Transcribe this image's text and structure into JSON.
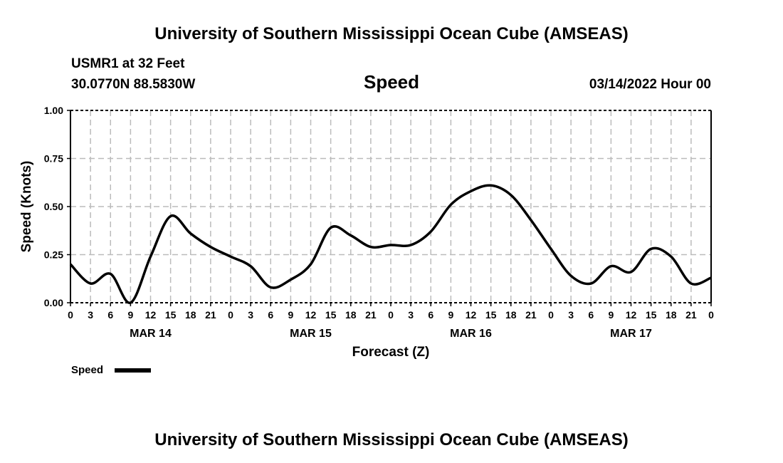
{
  "header": {
    "title": "University of Southern Mississippi Ocean Cube (AMSEAS)",
    "station": "USMR1 at 32 Feet",
    "coords": "30.0770N  88.5830W",
    "variable": "Speed",
    "datetime": "03/14/2022 Hour 00"
  },
  "footer": {
    "title": "University of Southern Mississippi Ocean Cube (AMSEAS)"
  },
  "chart_data": {
    "type": "line",
    "title": "Speed",
    "xlabel": "Forecast (Z)",
    "ylabel": "Speed (Knots)",
    "ylim": [
      0,
      1
    ],
    "xlim": [
      0,
      96
    ],
    "grid": true,
    "y_ticks": [
      "0.00",
      "0.25",
      "0.50",
      "0.75",
      "1.00"
    ],
    "x_tick_labels": [
      "0",
      "3",
      "6",
      "9",
      "12",
      "15",
      "18",
      "21",
      "0",
      "3",
      "6",
      "9",
      "12",
      "15",
      "18",
      "21",
      "0",
      "3",
      "6",
      "9",
      "12",
      "15",
      "18",
      "21",
      "0",
      "3",
      "6",
      "9",
      "12",
      "15",
      "18",
      "21",
      "0"
    ],
    "day_labels": [
      {
        "label": "MAR 14",
        "hour": 12
      },
      {
        "label": "MAR 15",
        "hour": 36
      },
      {
        "label": "MAR 16",
        "hour": 60
      },
      {
        "label": "MAR 17",
        "hour": 84
      }
    ],
    "legend": {
      "label": "Speed",
      "placement": "bottom-left"
    },
    "series": [
      {
        "name": "Speed",
        "x_step_hours": 3,
        "values": [
          0.2,
          0.1,
          0.15,
          0.0,
          0.24,
          0.45,
          0.36,
          0.29,
          0.24,
          0.19,
          0.08,
          0.12,
          0.2,
          0.39,
          0.35,
          0.29,
          0.3,
          0.3,
          0.37,
          0.51,
          0.58,
          0.61,
          0.56,
          0.43,
          0.28,
          0.14,
          0.1,
          0.19,
          0.16,
          0.28,
          0.24,
          0.1,
          0.13
        ]
      }
    ]
  }
}
